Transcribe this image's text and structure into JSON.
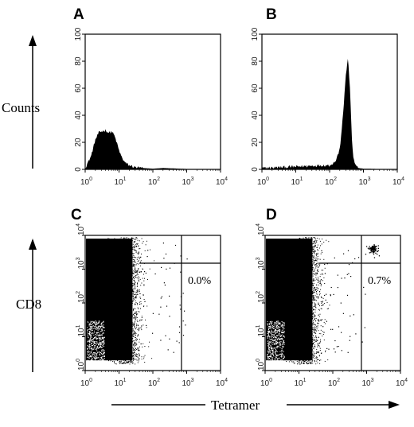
{
  "figure": {
    "y_label_top": "Counts",
    "y_label_bottom": "CD8",
    "x_label": "Tetramer"
  },
  "chart_data": [
    {
      "panel": "A",
      "type": "area",
      "title": "",
      "xlabel": "",
      "ylabel": "Counts",
      "x_scale": "log",
      "xlim": [
        1,
        10000
      ],
      "ylim": [
        0,
        100
      ],
      "x_ticks": [
        "10^0",
        "10^1",
        "10^2",
        "10^3",
        "10^4"
      ],
      "y_ticks": [
        "0",
        "20",
        "40",
        "60",
        "80",
        "100"
      ],
      "x": [
        1,
        1.5,
        2,
        2.5,
        3,
        4,
        5,
        6,
        7,
        8,
        9,
        10,
        12,
        15,
        20,
        30,
        50,
        100,
        200,
        1000,
        10000
      ],
      "y": [
        1,
        10,
        22,
        27,
        28,
        29,
        27,
        28,
        26,
        22,
        18,
        14,
        9,
        5,
        3,
        1.5,
        1,
        0.5,
        1,
        0.3,
        0
      ]
    },
    {
      "panel": "B",
      "type": "area",
      "title": "",
      "xlabel": "",
      "ylabel": "",
      "x_scale": "log",
      "xlim": [
        1,
        10000
      ],
      "ylim": [
        0,
        100
      ],
      "x_ticks": [
        "10^0",
        "10^1",
        "10^2",
        "10^3",
        "10^4"
      ],
      "y_ticks": [
        "0",
        "20",
        "40",
        "60",
        "80",
        "100"
      ],
      "x": [
        1,
        10,
        50,
        100,
        150,
        200,
        250,
        300,
        350,
        400,
        450,
        500,
        600,
        700,
        1000,
        10000
      ],
      "y": [
        1,
        2,
        3,
        3,
        6,
        15,
        40,
        70,
        82,
        60,
        25,
        8,
        3,
        1,
        0.5,
        0
      ]
    },
    {
      "panel": "C",
      "type": "scatter",
      "title": "",
      "xlabel": "Tetramer",
      "ylabel": "CD8",
      "x_scale": "log",
      "y_scale": "log",
      "xlim": [
        1,
        10000
      ],
      "ylim": [
        1,
        10000
      ],
      "x_ticks": [
        "10^0",
        "10^1",
        "10^2",
        "10^3",
        "10^4"
      ],
      "y_ticks": [
        "10^0",
        "10^1",
        "10^2",
        "10^3",
        "10^4"
      ],
      "quadrant_gate": {
        "x": 700,
        "y": 1500
      },
      "quadrant_label": "0.0%",
      "tetramer_positive_cluster": false
    },
    {
      "panel": "D",
      "type": "scatter",
      "title": "",
      "xlabel": "Tetramer",
      "ylabel": "CD8",
      "x_scale": "log",
      "y_scale": "log",
      "xlim": [
        1,
        10000
      ],
      "ylim": [
        1,
        10000
      ],
      "x_ticks": [
        "10^0",
        "10^1",
        "10^2",
        "10^3",
        "10^4"
      ],
      "y_ticks": [
        "10^0",
        "10^1",
        "10^2",
        "10^3",
        "10^4"
      ],
      "quadrant_gate": {
        "x": 700,
        "y": 1500
      },
      "quadrant_label": "0.7%",
      "tetramer_positive_cluster": true,
      "cluster_center": {
        "x": 1500,
        "y": 4000
      }
    }
  ]
}
